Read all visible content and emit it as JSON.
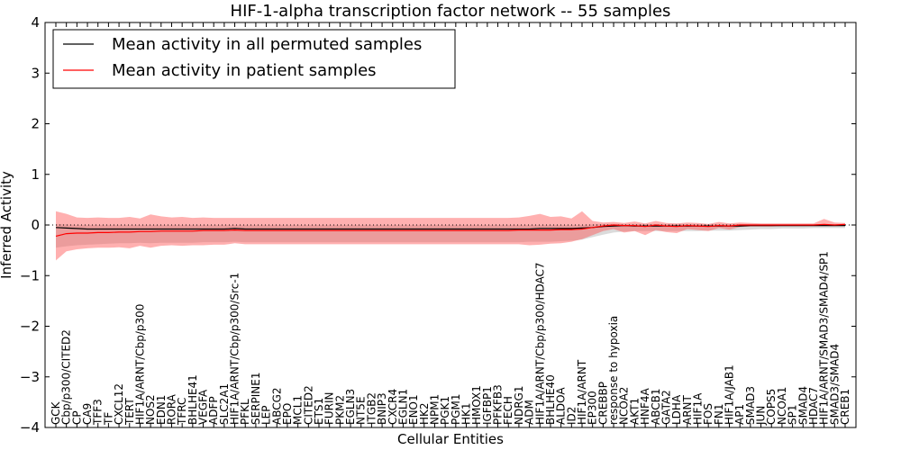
{
  "chart_data": {
    "type": "line",
    "title": "HIF-1-alpha transcription factor network -- 55 samples",
    "xlabel": "Cellular Entities",
    "ylabel": "Inferred Activity",
    "ylim": [
      -4,
      4
    ],
    "yticks": [
      4,
      3,
      2,
      1,
      0,
      -1,
      -2,
      -3,
      -4
    ],
    "ytick_labels": [
      "4",
      "3",
      "2",
      "1",
      "0",
      "−1",
      "−2",
      "−3",
      "−4"
    ],
    "reference_line": 0,
    "legend": {
      "placement": "top-left",
      "entries": [
        {
          "label": "Mean activity in all permuted samples",
          "color": "#000000"
        },
        {
          "label": "Mean activity in patient samples",
          "color": "#ff0000"
        }
      ]
    },
    "categories": [
      "GCK",
      "Cbp/p300/CITED2",
      "CP",
      "CA9",
      "TFF3",
      "TF",
      "CXCL12",
      "TERT",
      "HIF1A/ARNT/Cbp/p300",
      "NOS2",
      "EDN1",
      "RORA",
      "TFRC",
      "BHLHE41",
      "VEGFA",
      "ADFP",
      "SLC2A1",
      "HIF1A/ARNT/Cbp/p300/Src-1",
      "PFKL",
      "SERPINE1",
      "LEP",
      "ABCG2",
      "EPO",
      "MCL1",
      "CITED2",
      "ETS1",
      "FURIN",
      "PKM2",
      "EGLN3",
      "NT5E",
      "ITGB2",
      "BNIP3",
      "CXCR4",
      "EGLN1",
      "ENO1",
      "HK2",
      "NPM1",
      "PGK1",
      "PGM1",
      "HK1",
      "HMOX1",
      "IGFBP1",
      "PFKFB3",
      "FECH",
      "NDRG1",
      "ADM",
      "HIF1A/ARNT/Cbp/p300/HDAC7",
      "BHLHE40",
      "ALDOA",
      "ID2",
      "HIF1A/ARNT",
      "EP300",
      "CREBBP",
      "response to hypoxia",
      "NCOA2",
      "AKT1",
      "HNF4A",
      "ABCB1",
      "GATA2",
      "LDHA",
      "ARNT",
      "HIF1A",
      "FOS",
      "FN1",
      "HIF1A/JAB1",
      "AP1",
      "SMAD3",
      "JUN",
      "COPS5",
      "NCOA1",
      "SP1",
      "SMAD4",
      "HDAC7",
      "HIF1A/ARNT/SMAD3/SMAD4/SP1",
      "SMAD3/SMAD4",
      "CREB1"
    ],
    "series": [
      {
        "name": "Mean activity in all permuted samples",
        "color": "#000000",
        "values": [
          -0.05,
          -0.06,
          -0.07,
          -0.08,
          -0.08,
          -0.08,
          -0.08,
          -0.08,
          -0.08,
          -0.08,
          -0.08,
          -0.08,
          -0.08,
          -0.08,
          -0.08,
          -0.08,
          -0.08,
          -0.07,
          -0.08,
          -0.08,
          -0.08,
          -0.08,
          -0.08,
          -0.08,
          -0.08,
          -0.08,
          -0.08,
          -0.08,
          -0.08,
          -0.08,
          -0.08,
          -0.08,
          -0.08,
          -0.08,
          -0.08,
          -0.08,
          -0.08,
          -0.08,
          -0.08,
          -0.08,
          -0.08,
          -0.08,
          -0.08,
          -0.08,
          -0.08,
          -0.08,
          -0.07,
          -0.07,
          -0.07,
          -0.07,
          -0.06,
          -0.05,
          -0.03,
          -0.02,
          -0.01,
          -0.02,
          -0.02,
          -0.02,
          -0.02,
          -0.02,
          -0.02,
          -0.02,
          -0.02,
          -0.02,
          -0.02,
          -0.02,
          -0.01,
          -0.01,
          -0.01,
          -0.01,
          -0.01,
          -0.01,
          -0.01,
          -0.01,
          -0.01,
          -0.01
        ],
        "band_lower": [
          -0.45,
          -0.42,
          -0.4,
          -0.39,
          -0.38,
          -0.37,
          -0.36,
          -0.36,
          -0.35,
          -0.36,
          -0.35,
          -0.35,
          -0.35,
          -0.35,
          -0.34,
          -0.34,
          -0.34,
          -0.33,
          -0.34,
          -0.34,
          -0.34,
          -0.34,
          -0.34,
          -0.34,
          -0.34,
          -0.34,
          -0.34,
          -0.34,
          -0.34,
          -0.34,
          -0.34,
          -0.34,
          -0.34,
          -0.34,
          -0.34,
          -0.34,
          -0.34,
          -0.34,
          -0.34,
          -0.34,
          -0.34,
          -0.34,
          -0.34,
          -0.34,
          -0.34,
          -0.33,
          -0.33,
          -0.33,
          -0.32,
          -0.31,
          -0.29,
          -0.24,
          -0.19,
          -0.15,
          -0.13,
          -0.12,
          -0.12,
          -0.12,
          -0.12,
          -0.12,
          -0.12,
          -0.12,
          -0.11,
          -0.11,
          -0.11,
          -0.1,
          -0.09,
          -0.08,
          -0.08,
          -0.07,
          -0.07,
          -0.07,
          -0.06,
          -0.06,
          -0.06,
          -0.06
        ],
        "band_upper": [
          0.02,
          0.01,
          0.0,
          0.0,
          0.0,
          0.0,
          0.0,
          0.0,
          0.0,
          0.0,
          0.0,
          0.0,
          0.0,
          0.0,
          0.0,
          0.0,
          0.0,
          0.0,
          0.0,
          0.0,
          0.0,
          0.0,
          0.0,
          0.0,
          0.0,
          0.0,
          0.0,
          0.0,
          0.0,
          0.0,
          0.0,
          0.0,
          0.0,
          0.0,
          0.0,
          0.0,
          0.0,
          0.0,
          0.0,
          0.0,
          0.0,
          0.0,
          0.0,
          0.0,
          0.0,
          0.0,
          0.0,
          0.0,
          0.0,
          0.0,
          0.0,
          0.01,
          0.02,
          0.02,
          0.02,
          0.02,
          0.02,
          0.02,
          0.02,
          0.02,
          0.02,
          0.02,
          0.02,
          0.02,
          0.02,
          0.02,
          0.02,
          0.02,
          0.02,
          0.02,
          0.02,
          0.02,
          0.02,
          0.02,
          0.02,
          0.02
        ]
      },
      {
        "name": "Mean activity in patient samples",
        "color": "#ff0000",
        "values": [
          -0.22,
          -0.17,
          -0.16,
          -0.16,
          -0.15,
          -0.15,
          -0.14,
          -0.14,
          -0.13,
          -0.13,
          -0.12,
          -0.12,
          -0.12,
          -0.12,
          -0.11,
          -0.11,
          -0.11,
          -0.1,
          -0.11,
          -0.11,
          -0.11,
          -0.11,
          -0.11,
          -0.11,
          -0.11,
          -0.11,
          -0.11,
          -0.11,
          -0.11,
          -0.11,
          -0.11,
          -0.11,
          -0.11,
          -0.11,
          -0.11,
          -0.11,
          -0.11,
          -0.11,
          -0.11,
          -0.11,
          -0.11,
          -0.11,
          -0.11,
          -0.11,
          -0.1,
          -0.1,
          -0.1,
          -0.1,
          -0.09,
          -0.09,
          -0.08,
          -0.05,
          -0.02,
          0.0,
          -0.01,
          -0.01,
          -0.03,
          0.0,
          -0.02,
          -0.03,
          -0.01,
          -0.02,
          -0.03,
          -0.01,
          -0.02,
          0.0,
          0.0,
          0.0,
          0.0,
          0.0,
          0.0,
          0.0,
          0.0,
          0.01,
          0.0,
          0.01
        ],
        "band_lower": [
          -0.7,
          -0.52,
          -0.48,
          -0.46,
          -0.45,
          -0.45,
          -0.44,
          -0.46,
          -0.41,
          -0.45,
          -0.41,
          -0.4,
          -0.41,
          -0.4,
          -0.4,
          -0.39,
          -0.39,
          -0.36,
          -0.38,
          -0.38,
          -0.38,
          -0.38,
          -0.38,
          -0.38,
          -0.38,
          -0.38,
          -0.38,
          -0.38,
          -0.38,
          -0.38,
          -0.38,
          -0.38,
          -0.38,
          -0.38,
          -0.38,
          -0.38,
          -0.38,
          -0.38,
          -0.38,
          -0.38,
          -0.38,
          -0.38,
          -0.38,
          -0.38,
          -0.38,
          -0.4,
          -0.39,
          -0.37,
          -0.36,
          -0.33,
          -0.28,
          -0.2,
          -0.12,
          -0.08,
          -0.15,
          -0.12,
          -0.2,
          -0.1,
          -0.14,
          -0.16,
          -0.08,
          -0.1,
          -0.12,
          -0.06,
          -0.09,
          -0.04,
          -0.03,
          -0.03,
          -0.03,
          -0.02,
          -0.02,
          -0.02,
          -0.02,
          -0.02,
          -0.02,
          0.0
        ],
        "band_upper": [
          0.27,
          0.22,
          0.15,
          0.14,
          0.15,
          0.14,
          0.14,
          0.16,
          0.13,
          0.21,
          0.17,
          0.15,
          0.16,
          0.14,
          0.15,
          0.14,
          0.14,
          0.14,
          0.14,
          0.14,
          0.14,
          0.14,
          0.14,
          0.14,
          0.14,
          0.14,
          0.14,
          0.14,
          0.14,
          0.14,
          0.14,
          0.14,
          0.14,
          0.14,
          0.14,
          0.14,
          0.14,
          0.14,
          0.14,
          0.14,
          0.14,
          0.14,
          0.14,
          0.14,
          0.15,
          0.18,
          0.22,
          0.16,
          0.17,
          0.13,
          0.27,
          0.08,
          0.05,
          0.06,
          0.04,
          0.07,
          0.03,
          0.08,
          0.04,
          0.03,
          0.05,
          0.04,
          0.02,
          0.06,
          0.03,
          0.05,
          0.04,
          0.03,
          0.03,
          0.03,
          0.03,
          0.03,
          0.03,
          0.12,
          0.05,
          0.04
        ]
      }
    ]
  }
}
